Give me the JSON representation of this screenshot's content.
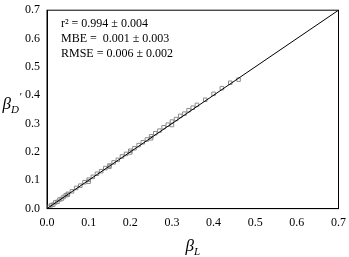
{
  "chart_data": {
    "type": "scatter",
    "x_label": "βL",
    "y_label": "βD'",
    "annotations": [
      "r² = 0.994 ± 0.004",
      "MBE =  0.001 ± 0.003",
      "RMSE = 0.006 ± 0.002"
    ],
    "xlim": [
      0,
      0.7
    ],
    "ylim": [
      0,
      0.7
    ],
    "xticks": [
      {
        "value": 0,
        "label": "0.0"
      },
      0.1,
      0.2,
      0.3,
      0.4,
      0.5,
      0.6,
      0.7
    ],
    "yticks": [
      {
        "value": 0,
        "label": "0.0"
      },
      0.1,
      0.2,
      0.3,
      0.4,
      0.5,
      0.6,
      0.7
    ],
    "grid": false,
    "series": [
      {
        "type": "scatter",
        "marker": "square",
        "color": "#8c8c8c",
        "x": [
          0.005,
          0.01,
          0.015,
          0.02,
          0.025,
          0.03,
          0.035,
          0.04,
          0.045,
          0.05,
          0.06,
          0.07,
          0.08,
          0.09,
          0.1,
          0.11,
          0.12,
          0.13,
          0.14,
          0.15,
          0.16,
          0.17,
          0.18,
          0.19,
          0.2,
          0.21,
          0.22,
          0.23,
          0.24,
          0.25,
          0.26,
          0.27,
          0.28,
          0.29,
          0.3,
          0.31,
          0.32,
          0.33,
          0.34,
          0.35,
          0.36,
          0.38,
          0.4,
          0.42,
          0.44,
          0.46,
          0.1,
          0.2,
          0.3,
          0.15,
          0.25,
          0.05
        ],
        "values": [
          0.006,
          0.012,
          0.014,
          0.022,
          0.024,
          0.032,
          0.034,
          0.041,
          0.047,
          0.052,
          0.061,
          0.073,
          0.081,
          0.093,
          0.102,
          0.112,
          0.123,
          0.132,
          0.143,
          0.152,
          0.163,
          0.172,
          0.184,
          0.193,
          0.204,
          0.213,
          0.224,
          0.234,
          0.244,
          0.255,
          0.266,
          0.275,
          0.287,
          0.296,
          0.307,
          0.316,
          0.327,
          0.335,
          0.347,
          0.356,
          0.366,
          0.384,
          0.405,
          0.425,
          0.444,
          0.455,
          0.095,
          0.198,
          0.295,
          0.148,
          0.248,
          0.049
        ]
      },
      {
        "type": "line",
        "line_style": "solid",
        "color": "#000000",
        "x": [
          0,
          0.7
        ],
        "values": [
          0,
          0.7
        ]
      }
    ]
  }
}
